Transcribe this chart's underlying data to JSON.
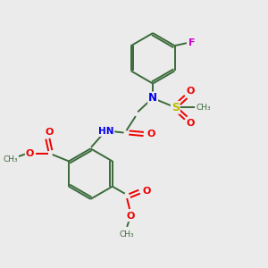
{
  "background_color": "#ebebeb",
  "bond_color": "#3a6b3a",
  "atom_colors": {
    "N": "#0000ee",
    "O": "#ee0000",
    "F": "#cc00cc",
    "S": "#bbbb00",
    "H": "#666666",
    "C": "#3a6b3a"
  },
  "figsize": [
    3.0,
    3.0
  ],
  "dpi": 100,
  "xlim": [
    0,
    10
  ],
  "ylim": [
    0,
    10
  ]
}
